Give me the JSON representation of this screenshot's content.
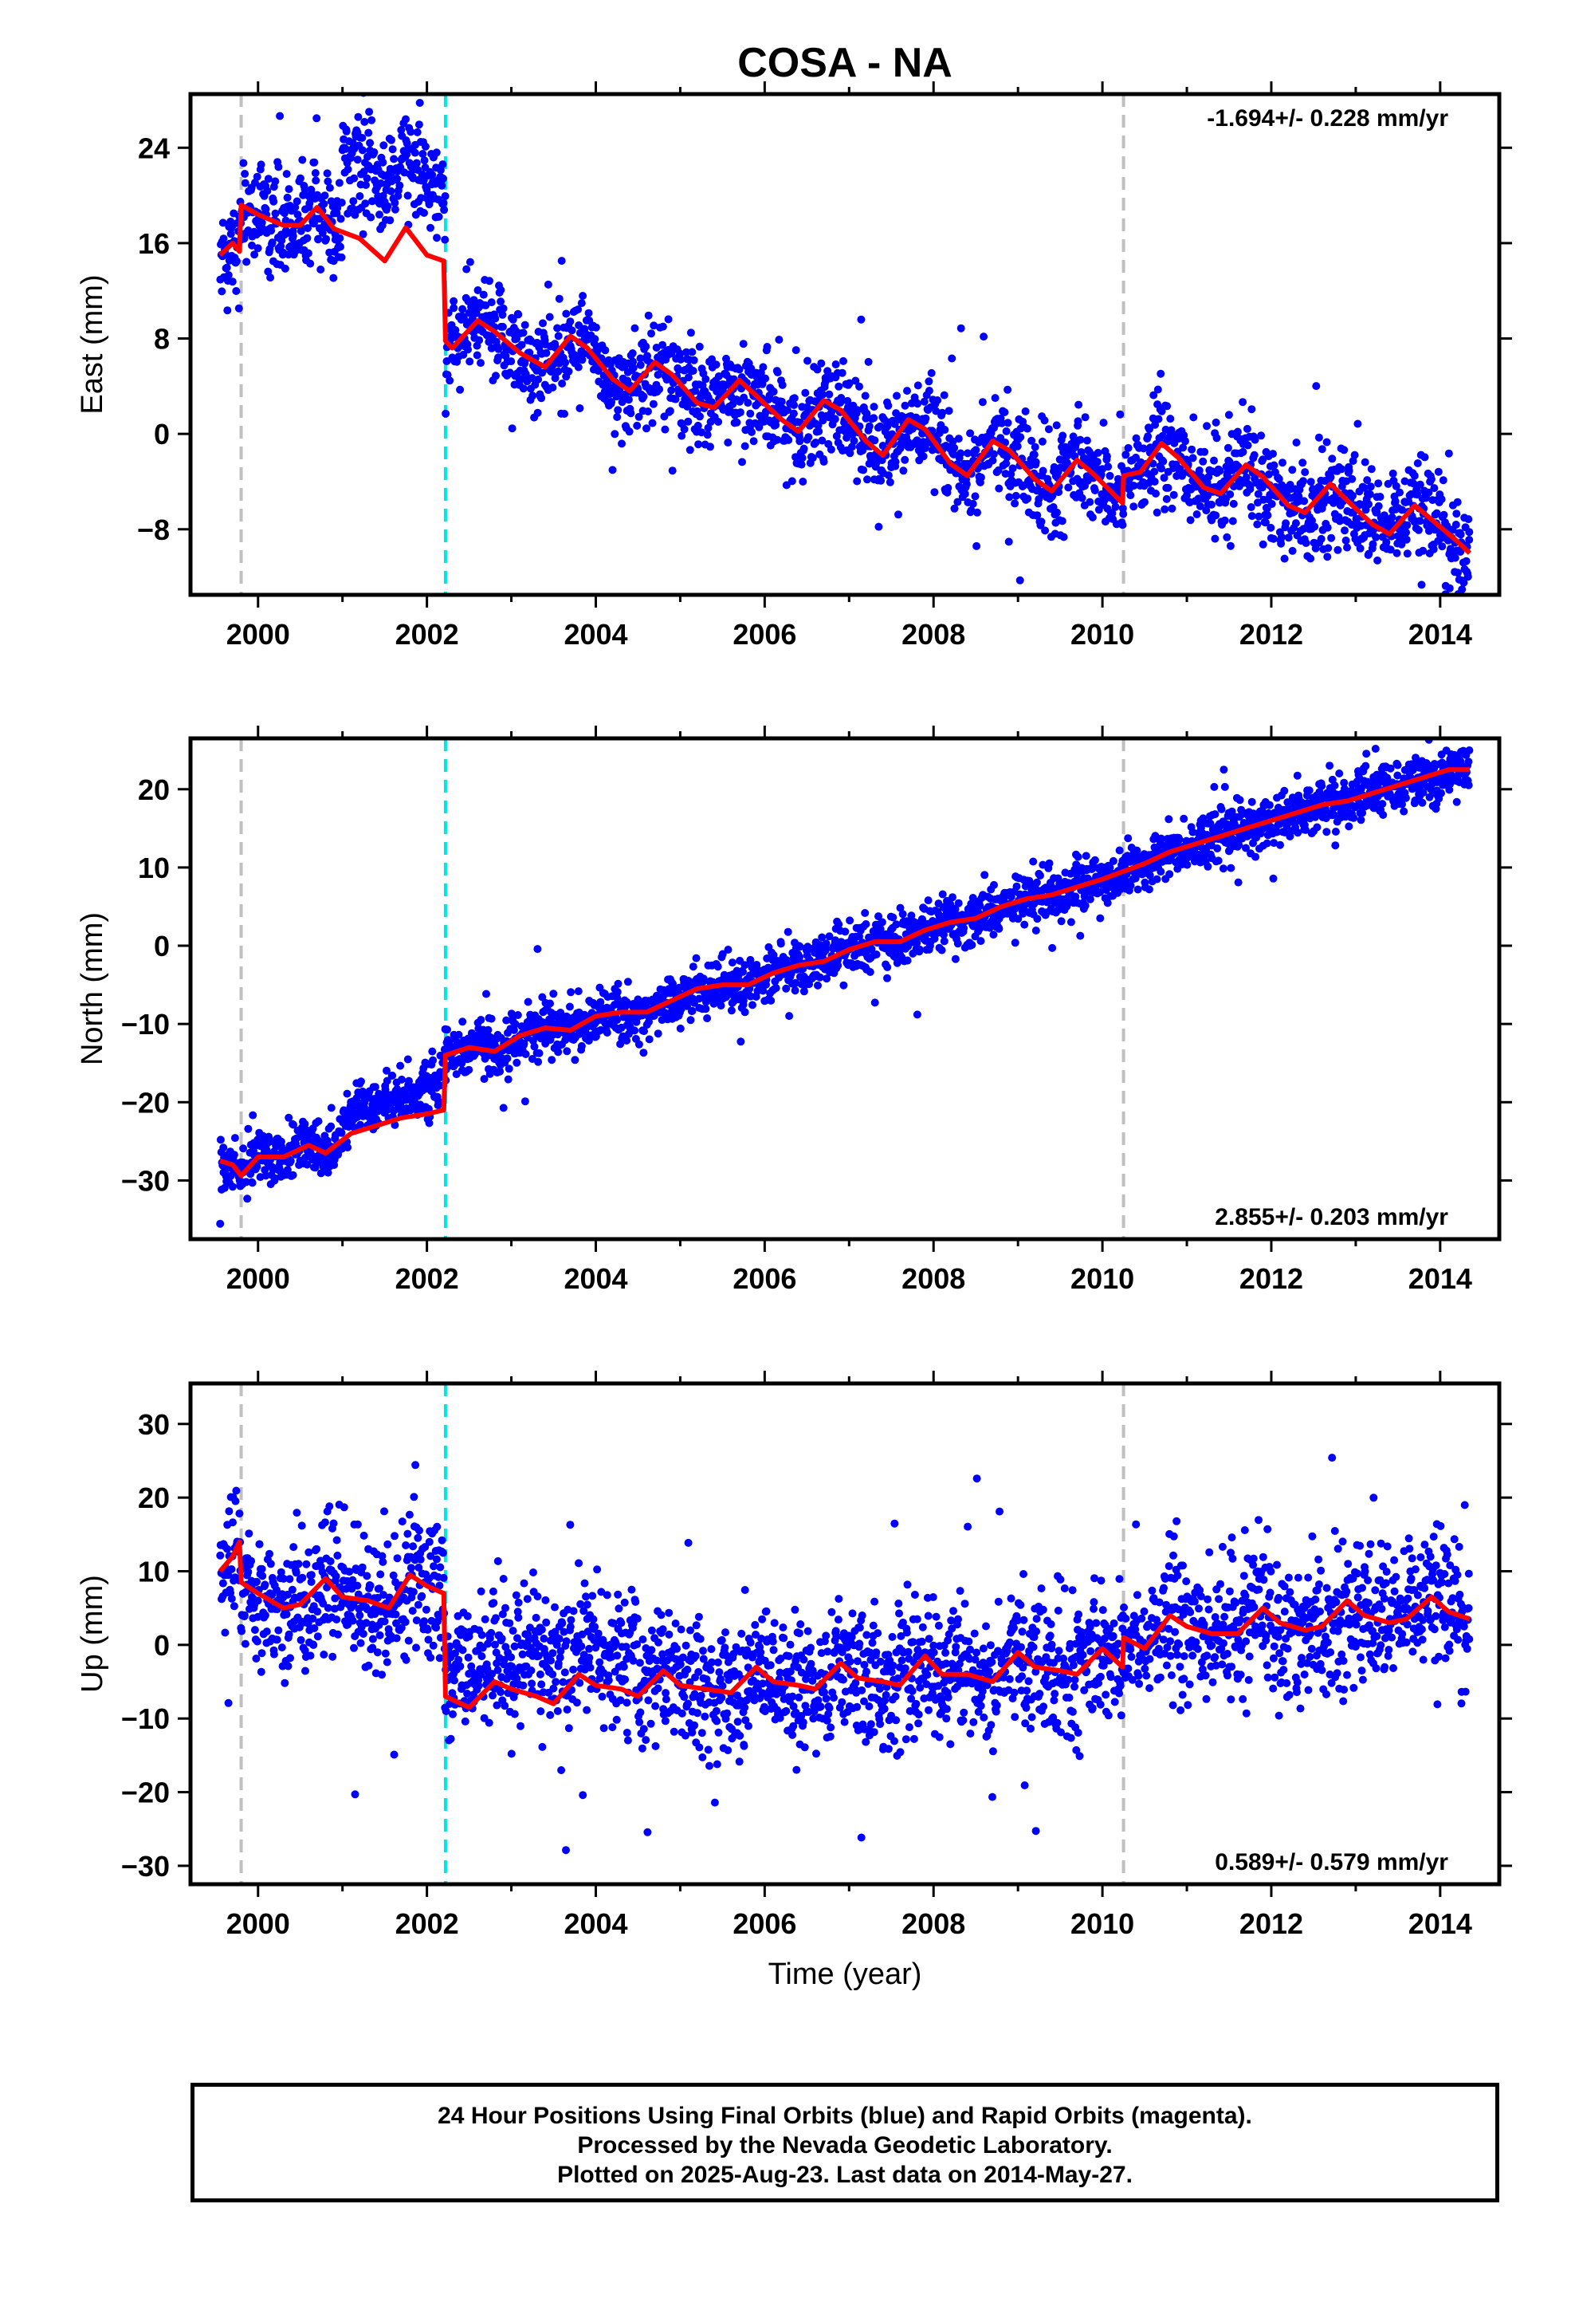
{
  "title": "COSA - NA",
  "xlabel": "Time (year)",
  "footer": {
    "line1": "24 Hour Positions Using Final Orbits (blue) and Rapid Orbits (magenta).",
    "line2": "Processed by the Nevada Geodetic Laboratory.",
    "line3": "Plotted on 2025-Aug-23. Last data on 2014-May-27."
  },
  "colors": {
    "points": "#0000ff",
    "model": "#ff0000",
    "cyan_line": "#00e5e5",
    "grey_line": "#c0c0c0"
  },
  "vertical_lines": [
    {
      "year": 1999.8,
      "color": "grey"
    },
    {
      "year": 2002.22,
      "color": "cyan"
    },
    {
      "year": 2010.25,
      "color": "grey"
    }
  ],
  "chart_data": [
    {
      "type": "scatter",
      "component": "east",
      "ylabel": "East (mm)",
      "rate": "-1.694+/- 0.228 mm/yr",
      "rate_position": "top-right",
      "xlim": [
        1999.2,
        2014.7
      ],
      "ylim": [
        -13.5,
        28.5
      ],
      "xticks": [
        2000,
        2002,
        2004,
        2006,
        2008,
        2010,
        2012,
        2014
      ],
      "yticks": [
        -8,
        0,
        8,
        16,
        24
      ],
      "grid": false,
      "model_line": [
        [
          1999.55,
          15.0
        ],
        [
          1999.7,
          16.0
        ],
        [
          1999.78,
          15.3
        ],
        [
          1999.8,
          19.2
        ],
        [
          2000.0,
          18.4
        ],
        [
          2000.3,
          17.5
        ],
        [
          2000.5,
          17.5
        ],
        [
          2000.7,
          19.0
        ],
        [
          2000.9,
          17.2
        ],
        [
          2001.2,
          16.4
        ],
        [
          2001.5,
          14.5
        ],
        [
          2001.75,
          17.3
        ],
        [
          2002.0,
          15.0
        ],
        [
          2002.2,
          14.5
        ],
        [
          2002.22,
          7.8
        ],
        [
          2002.3,
          7.2
        ],
        [
          2002.6,
          9.5
        ],
        [
          2002.8,
          8.6
        ],
        [
          2003.1,
          6.8
        ],
        [
          2003.4,
          5.6
        ],
        [
          2003.7,
          8.2
        ],
        [
          2003.9,
          7.2
        ],
        [
          2004.2,
          4.6
        ],
        [
          2004.4,
          3.6
        ],
        [
          2004.7,
          6.0
        ],
        [
          2004.9,
          5.0
        ],
        [
          2005.2,
          2.6
        ],
        [
          2005.4,
          2.2
        ],
        [
          2005.7,
          4.5
        ],
        [
          2005.9,
          3.2
        ],
        [
          2006.2,
          1.2
        ],
        [
          2006.4,
          0.2
        ],
        [
          2006.7,
          2.8
        ],
        [
          2006.9,
          2.0
        ],
        [
          2007.2,
          -0.6
        ],
        [
          2007.4,
          -1.8
        ],
        [
          2007.7,
          1.2
        ],
        [
          2007.9,
          0.4
        ],
        [
          2008.2,
          -2.5
        ],
        [
          2008.4,
          -3.5
        ],
        [
          2008.7,
          -0.6
        ],
        [
          2008.9,
          -1.4
        ],
        [
          2009.2,
          -3.8
        ],
        [
          2009.4,
          -4.8
        ],
        [
          2009.7,
          -2.2
        ],
        [
          2009.9,
          -3.4
        ],
        [
          2010.24,
          -5.8
        ],
        [
          2010.25,
          -3.5
        ],
        [
          2010.45,
          -3.2
        ],
        [
          2010.7,
          -0.8
        ],
        [
          2010.9,
          -2.0
        ],
        [
          2011.2,
          -4.5
        ],
        [
          2011.4,
          -5.0
        ],
        [
          2011.7,
          -2.6
        ],
        [
          2011.9,
          -3.6
        ],
        [
          2012.2,
          -6.0
        ],
        [
          2012.4,
          -6.6
        ],
        [
          2012.7,
          -4.2
        ],
        [
          2012.9,
          -5.6
        ],
        [
          2013.2,
          -7.6
        ],
        [
          2013.4,
          -8.4
        ],
        [
          2013.7,
          -6.0
        ],
        [
          2013.9,
          -7.2
        ],
        [
          2014.2,
          -9.0
        ],
        [
          2014.35,
          -10.0
        ]
      ]
    },
    {
      "type": "scatter",
      "component": "north",
      "ylabel": "North (mm)",
      "rate": "2.855+/- 0.203 mm/yr",
      "rate_position": "bottom-right",
      "xlim": [
        1999.2,
        2014.7
      ],
      "ylim": [
        -37.5,
        26.5
      ],
      "xticks": [
        2000,
        2002,
        2004,
        2006,
        2008,
        2010,
        2012,
        2014
      ],
      "yticks": [
        -30,
        -20,
        -10,
        0,
        10,
        20
      ],
      "grid": false,
      "model_line": [
        [
          1999.55,
          -27.5
        ],
        [
          1999.7,
          -28.0
        ],
        [
          1999.8,
          -29.4
        ],
        [
          2000.0,
          -27.0
        ],
        [
          2000.3,
          -27.0
        ],
        [
          2000.6,
          -25.5
        ],
        [
          2000.8,
          -26.5
        ],
        [
          2001.1,
          -24.0
        ],
        [
          2001.4,
          -23.0
        ],
        [
          2001.7,
          -22.0
        ],
        [
          2002.0,
          -21.5
        ],
        [
          2002.2,
          -21.0
        ],
        [
          2002.22,
          -14.0
        ],
        [
          2002.5,
          -13.0
        ],
        [
          2002.8,
          -13.5
        ],
        [
          2003.1,
          -11.5
        ],
        [
          2003.4,
          -10.5
        ],
        [
          2003.7,
          -10.8
        ],
        [
          2004.0,
          -9.0
        ],
        [
          2004.3,
          -8.5
        ],
        [
          2004.6,
          -8.5
        ],
        [
          2004.9,
          -7.0
        ],
        [
          2005.2,
          -5.5
        ],
        [
          2005.5,
          -5.0
        ],
        [
          2005.8,
          -5.0
        ],
        [
          2006.1,
          -3.5
        ],
        [
          2006.4,
          -2.5
        ],
        [
          2006.7,
          -2.0
        ],
        [
          2007.0,
          -0.5
        ],
        [
          2007.3,
          0.5
        ],
        [
          2007.6,
          0.5
        ],
        [
          2007.9,
          2.0
        ],
        [
          2008.2,
          3.0
        ],
        [
          2008.5,
          3.5
        ],
        [
          2008.8,
          5.0
        ],
        [
          2009.1,
          6.0
        ],
        [
          2009.4,
          6.5
        ],
        [
          2009.7,
          7.5
        ],
        [
          2010.0,
          8.5
        ],
        [
          2010.25,
          9.5
        ],
        [
          2010.5,
          10.5
        ],
        [
          2010.8,
          12.0
        ],
        [
          2011.1,
          13.0
        ],
        [
          2011.4,
          14.0
        ],
        [
          2011.7,
          15.0
        ],
        [
          2012.0,
          16.0
        ],
        [
          2012.3,
          17.0
        ],
        [
          2012.6,
          18.0
        ],
        [
          2012.9,
          18.5
        ],
        [
          2013.2,
          19.5
        ],
        [
          2013.5,
          20.5
        ],
        [
          2013.8,
          21.5
        ],
        [
          2014.1,
          22.5
        ],
        [
          2014.35,
          22.5
        ]
      ]
    },
    {
      "type": "scatter",
      "component": "up",
      "ylabel": "Up (mm)",
      "rate": "0.589+/- 0.579 mm/yr",
      "rate_position": "bottom-right",
      "xlim": [
        1999.2,
        2014.7
      ],
      "ylim": [
        -32.5,
        35.5
      ],
      "xticks": [
        2000,
        2002,
        2004,
        2006,
        2008,
        2010,
        2012,
        2014
      ],
      "yticks": [
        -30,
        -20,
        -10,
        0,
        10,
        20,
        30
      ],
      "grid": false,
      "model_line": [
        [
          1999.55,
          10.0
        ],
        [
          1999.7,
          12.0
        ],
        [
          1999.78,
          14.0
        ],
        [
          1999.8,
          8.5
        ],
        [
          2000.0,
          7.0
        ],
        [
          2000.3,
          5.0
        ],
        [
          2000.5,
          5.5
        ],
        [
          2000.8,
          9.0
        ],
        [
          2001.0,
          6.5
        ],
        [
          2001.3,
          6.0
        ],
        [
          2001.55,
          5.0
        ],
        [
          2001.8,
          9.5
        ],
        [
          2002.0,
          8.0
        ],
        [
          2002.2,
          7.0
        ],
        [
          2002.22,
          -7.0
        ],
        [
          2002.5,
          -8.5
        ],
        [
          2002.8,
          -5.0
        ],
        [
          2003.0,
          -6.0
        ],
        [
          2003.3,
          -7.0
        ],
        [
          2003.5,
          -8.0
        ],
        [
          2003.8,
          -4.0
        ],
        [
          2004.0,
          -5.5
        ],
        [
          2004.3,
          -6.0
        ],
        [
          2004.5,
          -7.0
        ],
        [
          2004.8,
          -3.5
        ],
        [
          2005.0,
          -5.5
        ],
        [
          2005.3,
          -6.0
        ],
        [
          2005.6,
          -6.5
        ],
        [
          2005.9,
          -3.0
        ],
        [
          2006.1,
          -5.0
        ],
        [
          2006.4,
          -5.5
        ],
        [
          2006.6,
          -6.0
        ],
        [
          2006.9,
          -2.5
        ],
        [
          2007.1,
          -4.5
        ],
        [
          2007.4,
          -5.0
        ],
        [
          2007.6,
          -5.5
        ],
        [
          2007.9,
          -1.5
        ],
        [
          2008.1,
          -4.0
        ],
        [
          2008.4,
          -4.0
        ],
        [
          2008.7,
          -5.0
        ],
        [
          2009.0,
          -1.0
        ],
        [
          2009.2,
          -3.0
        ],
        [
          2009.5,
          -3.5
        ],
        [
          2009.7,
          -4.0
        ],
        [
          2010.0,
          -0.5
        ],
        [
          2010.24,
          -3.0
        ],
        [
          2010.25,
          1.0
        ],
        [
          2010.5,
          -0.5
        ],
        [
          2010.8,
          4.0
        ],
        [
          2011.0,
          2.5
        ],
        [
          2011.3,
          1.5
        ],
        [
          2011.6,
          1.5
        ],
        [
          2011.9,
          5.0
        ],
        [
          2012.1,
          3.0
        ],
        [
          2012.4,
          2.0
        ],
        [
          2012.6,
          2.5
        ],
        [
          2012.9,
          6.0
        ],
        [
          2013.1,
          4.0
        ],
        [
          2013.4,
          3.0
        ],
        [
          2013.6,
          3.5
        ],
        [
          2013.9,
          6.5
        ],
        [
          2014.1,
          4.5
        ],
        [
          2014.35,
          3.5
        ]
      ]
    }
  ]
}
